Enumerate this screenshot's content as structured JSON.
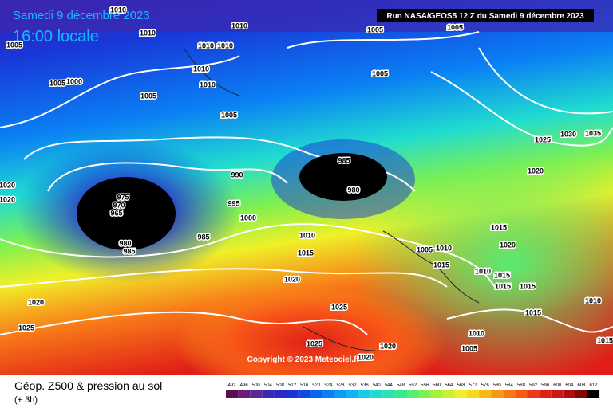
{
  "header": {
    "date": "Samedi 9 décembre 2023",
    "time": "16:00 locale",
    "run": "Run NASA/GEOS5 12 Z du Samedi 9 décembre 2023"
  },
  "copyright": "Copyright © 2023 Meteociel.fr",
  "footer": {
    "title": "Géop. Z500 & pression au sol",
    "step": "(+ 3h)"
  },
  "isobar_labels": [
    1010,
    1010,
    1005,
    1010,
    1005,
    1005,
    1010,
    1010,
    1010,
    1005,
    1000,
    1010,
    1005,
    1005,
    1005,
    1025,
    1030,
    1035,
    1020,
    990,
    985,
    980,
    975,
    970,
    965,
    995,
    1000,
    985,
    980,
    985,
    1020,
    1020,
    1010,
    1015,
    1015,
    1020,
    1005,
    1015,
    1010,
    1010,
    1015,
    1015,
    1015,
    1020,
    1010,
    1015,
    1020,
    1025,
    1025,
    1010,
    1025,
    1020,
    1005,
    1020,
    1015
  ],
  "colorbar": {
    "labels": [
      492,
      496,
      500,
      504,
      508,
      512,
      516,
      520,
      524,
      528,
      532,
      536,
      540,
      544,
      548,
      552,
      556,
      560,
      564,
      568,
      572,
      576,
      580,
      584,
      588,
      592,
      596,
      600,
      604,
      608,
      612
    ],
    "colors": [
      "#5a1050",
      "#6a1a78",
      "#5a2a9a",
      "#3c2ab0",
      "#2a2ac8",
      "#1a34d8",
      "#1048e8",
      "#0a64f0",
      "#0a80f4",
      "#0a9cf6",
      "#10b4f4",
      "#18cce8",
      "#20dcd0",
      "#28e4b0",
      "#38e890",
      "#58ec70",
      "#80f050",
      "#a8f038",
      "#ccf030",
      "#f0f028",
      "#f8d820",
      "#f8b818",
      "#f89818",
      "#f87818",
      "#f85818",
      "#f03818",
      "#e02018",
      "#c81818",
      "#a81010",
      "#800808",
      "#000000"
    ]
  }
}
